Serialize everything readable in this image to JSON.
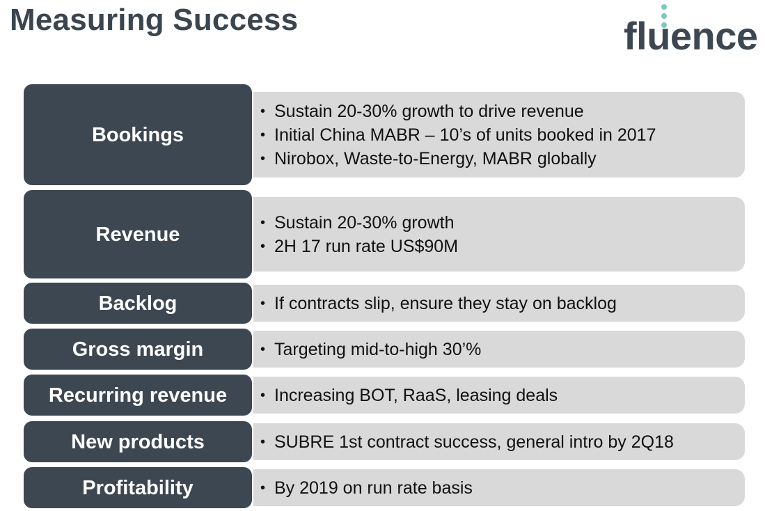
{
  "slide": {
    "title": "Measuring Success",
    "logo_text": "fluence",
    "accent_color": "#7ec8c0",
    "label_bg_color": "#3d4751",
    "detail_bg_color": "#d9d9d9"
  },
  "rows": [
    {
      "label": "Bookings",
      "bullets": [
        "Sustain 20-30% growth to drive revenue",
        "Initial China MABR – 10’s of units booked in 2017",
        "Nirobox, Waste-to-Energy, MABR globally"
      ]
    },
    {
      "label": "Revenue",
      "bullets": [
        "Sustain 20-30% growth",
        "2H 17 run rate US$90M"
      ]
    },
    {
      "label": "Backlog",
      "bullets": [
        "If contracts slip, ensure they stay on backlog"
      ]
    },
    {
      "label": "Gross margin",
      "bullets": [
        "Targeting mid-to-high 30’%"
      ]
    },
    {
      "label": "Recurring revenue",
      "bullets": [
        "Increasing BOT, RaaS, leasing deals"
      ]
    },
    {
      "label": "New products",
      "bullets": [
        "SUBRE 1st contract success, general intro by 2Q18"
      ]
    },
    {
      "label": "Profitability",
      "bullets": [
        "By 2019 on run rate basis"
      ]
    }
  ]
}
